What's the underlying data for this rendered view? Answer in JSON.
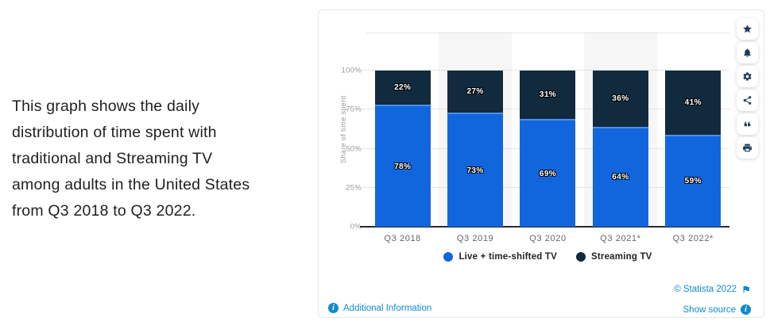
{
  "description": "This graph shows the daily\ndistribution of time spent with\ntraditional and Streaming TV\namong adults in the United States\nfrom Q3 2018 to Q3 2022.",
  "chart_data": {
    "type": "bar",
    "stacked": true,
    "categories": [
      "Q3 2018",
      "Q3 2019",
      "Q3 2020",
      "Q3 2021*",
      "Q3 2022*"
    ],
    "series": [
      {
        "name": "Live + time-shifted TV",
        "color": "#1166de",
        "values": [
          78,
          73,
          69,
          64,
          59
        ]
      },
      {
        "name": "Streaming TV",
        "color": "#112a3e",
        "values": [
          22,
          27,
          31,
          36,
          41
        ]
      }
    ],
    "value_label_suffix": "%",
    "xlabel": "",
    "ylabel": "Share of time spent",
    "yticks": [
      "0%",
      "25%",
      "50%",
      "75%",
      "100%"
    ],
    "ylim": [
      0,
      100
    ],
    "grid": "horizontal-dotted",
    "legend_position": "bottom",
    "highlighted_columns": [
      1,
      3
    ]
  },
  "footer": {
    "additional_info": "Additional Information",
    "copyright": "© Statista 2022",
    "show_source": "Show source"
  },
  "toolbar": {
    "buttons": [
      "favorite",
      "notifications",
      "settings",
      "share",
      "cite",
      "print"
    ]
  },
  "colors": {
    "live_blue": "#1166de",
    "streaming_navy": "#112a3e",
    "link_blue": "#128aca",
    "icon_navy": "#1f3b57",
    "highlight_band": "#f6f6f6",
    "gridline": "#cccccc"
  }
}
